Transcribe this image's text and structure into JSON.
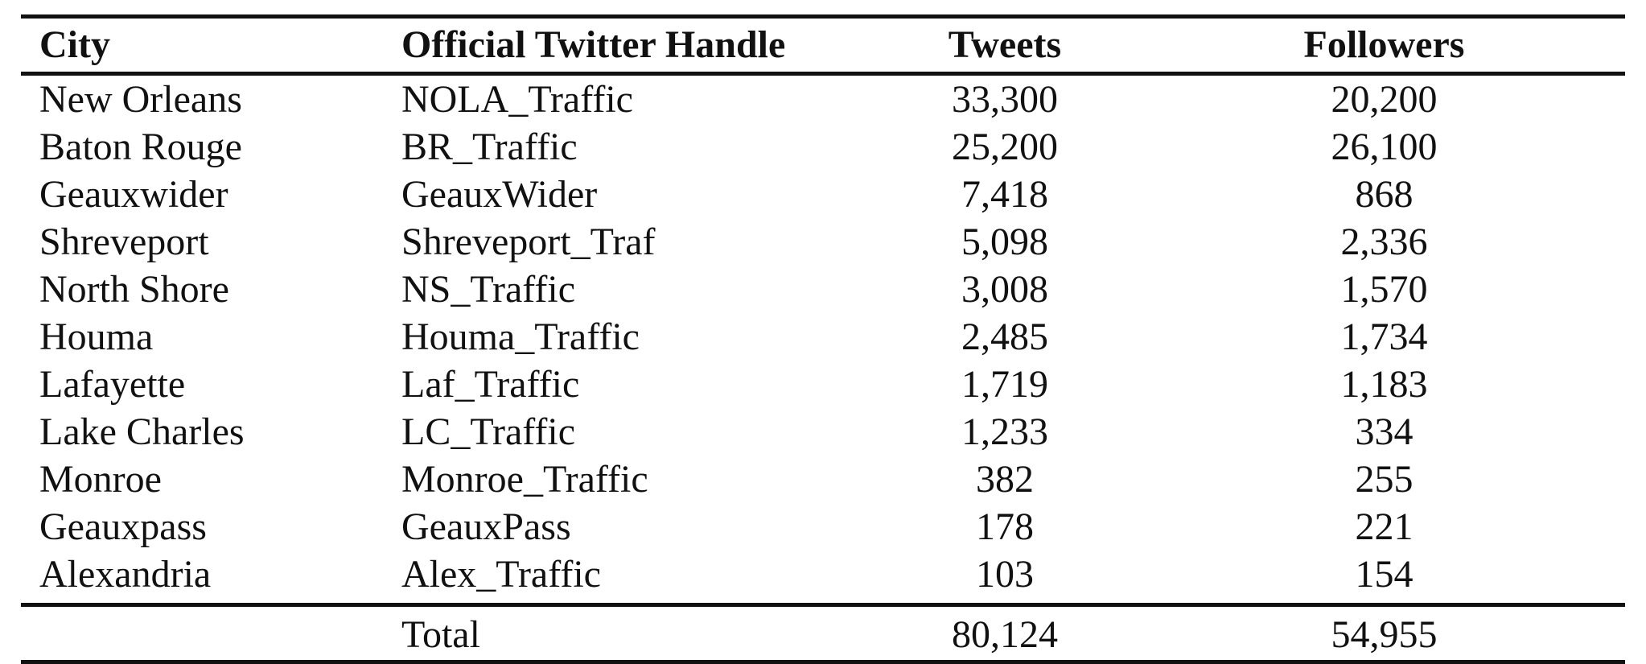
{
  "table": {
    "headers": {
      "city": "City",
      "handle": "Official Twitter Handle",
      "tweets": "Tweets",
      "followers": "Followers"
    },
    "rows": [
      {
        "city": "New Orleans",
        "handle": "NOLA_Traffic",
        "tweets": "33,300",
        "followers": "20,200"
      },
      {
        "city": "Baton Rouge",
        "handle": "BR_Traffic",
        "tweets": "25,200",
        "followers": "26,100"
      },
      {
        "city": "Geauxwider",
        "handle": "GeauxWider",
        "tweets": "7,418",
        "followers": "868"
      },
      {
        "city": "Shreveport",
        "handle": "Shreveport_Traf",
        "tweets": "5,098",
        "followers": "2,336"
      },
      {
        "city": "North Shore",
        "handle": "NS_Traffic",
        "tweets": "3,008",
        "followers": "1,570"
      },
      {
        "city": "Houma",
        "handle": "Houma_Traffic",
        "tweets": "2,485",
        "followers": "1,734"
      },
      {
        "city": "Lafayette",
        "handle": "Laf_Traffic",
        "tweets": "1,719",
        "followers": "1,183"
      },
      {
        "city": "Lake Charles",
        "handle": "LC_Traffic",
        "tweets": "1,233",
        "followers": "334"
      },
      {
        "city": "Monroe",
        "handle": "Monroe_Traffic",
        "tweets": "382",
        "followers": "255"
      },
      {
        "city": "Geauxpass",
        "handle": "GeauxPass",
        "tweets": "178",
        "followers": "221"
      },
      {
        "city": "Alexandria",
        "handle": "Alex_Traffic",
        "tweets": "103",
        "followers": "154"
      }
    ],
    "total": {
      "label": "Total",
      "tweets": "80,124",
      "followers": "54,955"
    }
  }
}
